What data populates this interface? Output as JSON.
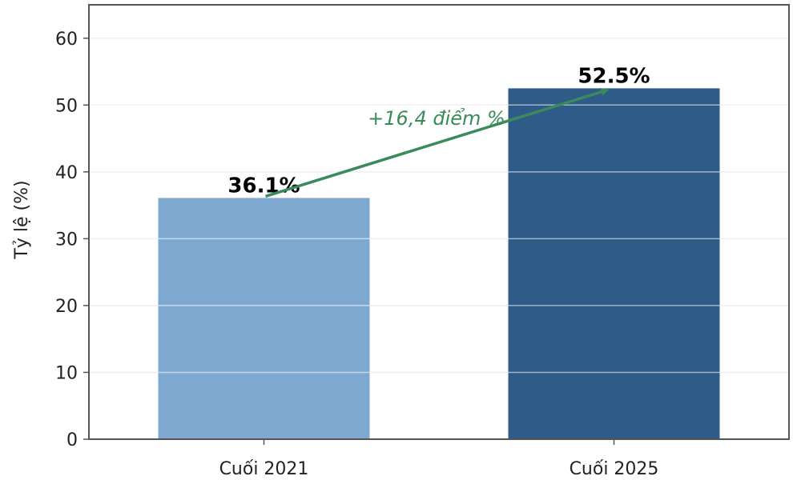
{
  "chart_data": {
    "type": "bar",
    "title": "",
    "xlabel": "",
    "ylabel": "Tỷ lệ (%)",
    "categories": [
      "Cuối 2021",
      "Cuối 2025"
    ],
    "values": [
      36.1,
      52.5
    ],
    "value_labels": [
      "36.1%",
      "52.5%"
    ],
    "bar_colors": [
      "#7fa8d1",
      "#2e5b88"
    ],
    "ylim": [
      0,
      65
    ],
    "yticks": [
      0,
      10,
      20,
      30,
      40,
      50,
      60
    ],
    "ytick_labels": [
      "0",
      "10",
      "20",
      "30",
      "40",
      "50",
      "60"
    ],
    "grid": true,
    "legend": "none",
    "annotation": {
      "text": "+16,4 điểm %",
      "from_category": "Cuối 2021",
      "from_value": 36.1,
      "to_category": "Cuối 2025",
      "to_value": 52.5,
      "color": "#3a8a5a"
    }
  }
}
